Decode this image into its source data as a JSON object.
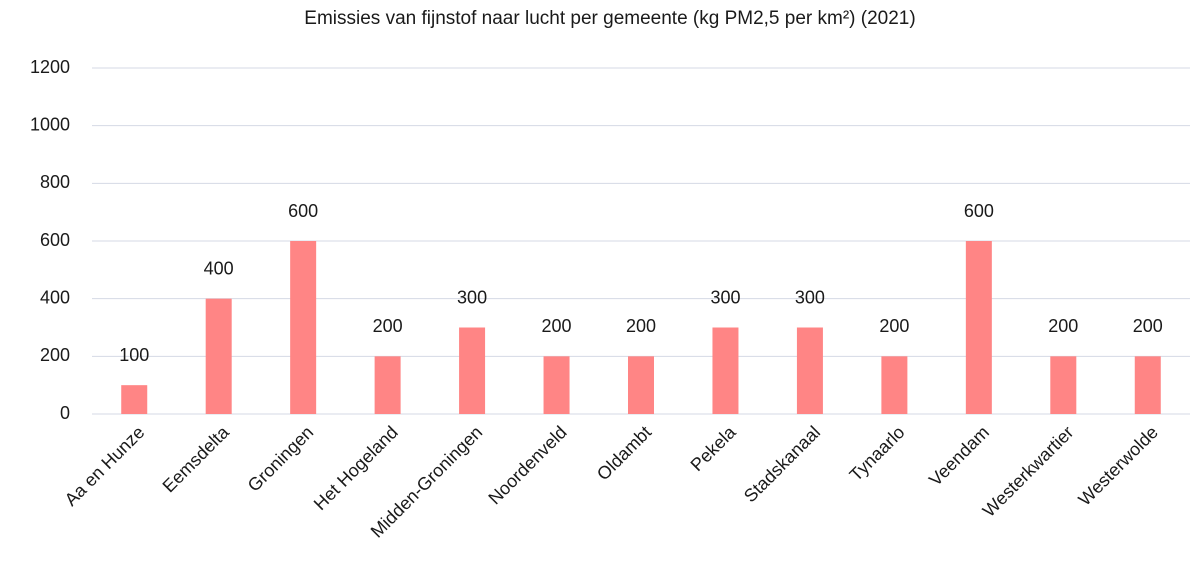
{
  "chart_data": {
    "type": "bar",
    "title": "Emissies van fijnstof naar lucht per gemeente (kg PM2,5 per km²) (2021)",
    "categories": [
      "Aa en Hunze",
      "Eemsdelta",
      "Groningen",
      "Het Hogeland",
      "Midden-Groningen",
      "Noordenveld",
      "Oldambt",
      "Pekela",
      "Stadskanaal",
      "Tynaarlo",
      "Veendam",
      "Westerkwartier",
      "Westerwolde"
    ],
    "values": [
      100,
      400,
      600,
      200,
      300,
      200,
      200,
      300,
      300,
      200,
      600,
      200,
      200
    ],
    "color": "#ff8585",
    "ylim": [
      0,
      1200
    ],
    "yticks": [
      0,
      200,
      400,
      600,
      800,
      1000,
      1200
    ],
    "grid": true
  }
}
